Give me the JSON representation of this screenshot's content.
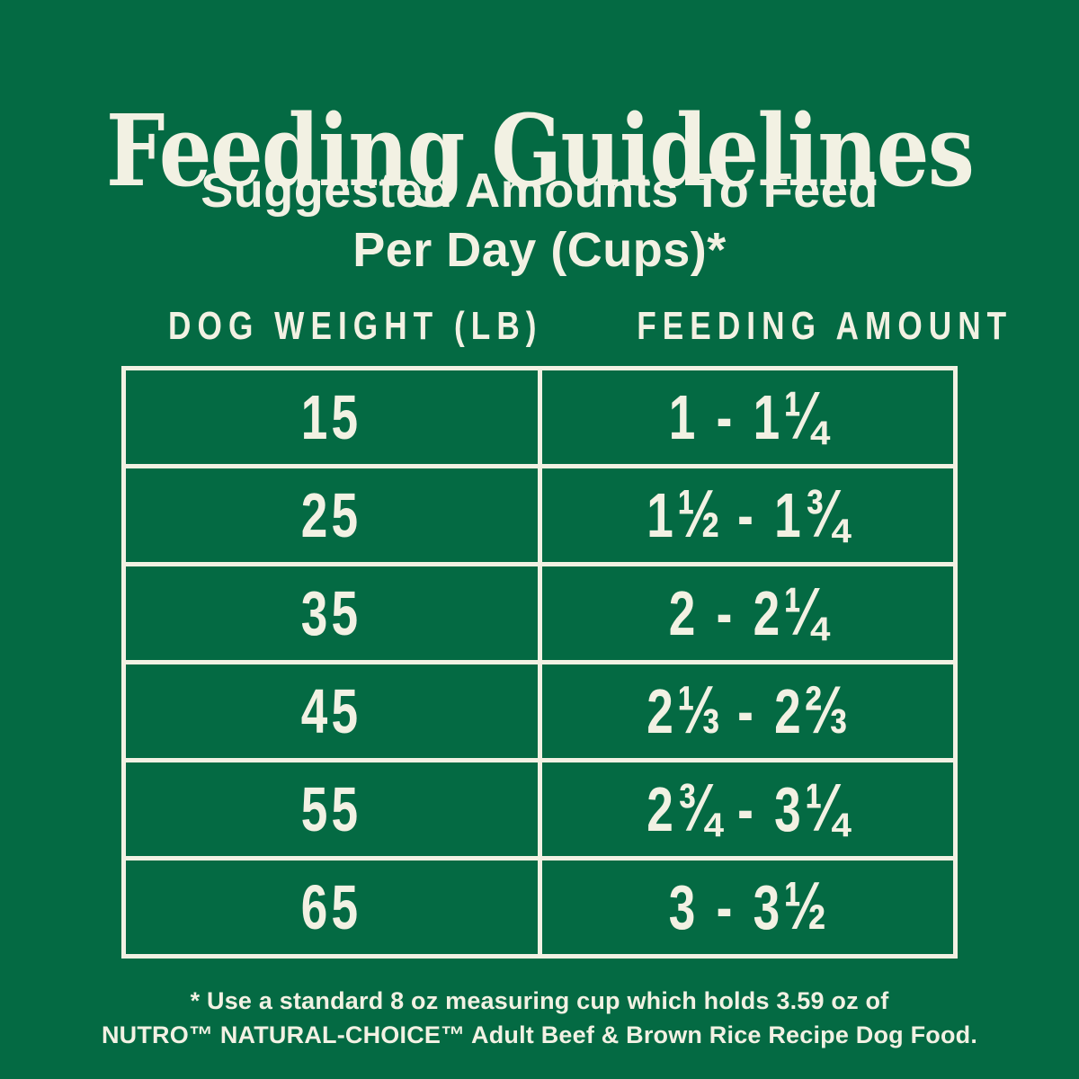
{
  "colors": {
    "background_green": "#046a43",
    "cream": "#f2f1e3"
  },
  "title": "Feeding Guidelines",
  "subtitle": {
    "line1": "Suggested Amounts To Feed",
    "line2": "Per Day (Cups)*"
  },
  "table": {
    "headers": {
      "weight": "DOG WEIGHT (LB)",
      "amount": "FEEDING AMOUNT"
    },
    "rows": [
      {
        "weight": "15",
        "amount": "1 - 1¼"
      },
      {
        "weight": "25",
        "amount": "1½ - 1¾"
      },
      {
        "weight": "35",
        "amount": "2 - 2¼"
      },
      {
        "weight": "45",
        "amount": "2⅓ - 2⅔"
      },
      {
        "weight": "55",
        "amount": "2¾ - 3¼"
      },
      {
        "weight": "65",
        "amount": "3 - 3½"
      }
    ]
  },
  "footnote": {
    "line1": "* Use a standard 8 oz measuring cup which holds 3.59 oz of",
    "line2": "NUTRO™ NATURAL-CHOICE™ Adult Beef & Brown Rice Recipe Dog Food."
  },
  "chart_data": {
    "type": "table",
    "title": "Feeding Guidelines",
    "subtitle": "Suggested Amounts To Feed Per Day (Cups)*",
    "columns": [
      "DOG WEIGHT (LB)",
      "FEEDING AMOUNT"
    ],
    "rows": [
      [
        "15",
        "1 - 1¼"
      ],
      [
        "25",
        "1½ - 1¾"
      ],
      [
        "35",
        "2 - 2¼"
      ],
      [
        "45",
        "2⅓ - 2⅔"
      ],
      [
        "55",
        "2¾ - 3¼"
      ],
      [
        "65",
        "3 - 3½"
      ]
    ],
    "weights_lb": [
      15,
      25,
      35,
      45,
      55,
      65
    ],
    "feeding_cups_min": [
      1,
      1.5,
      2,
      2.333,
      2.75,
      3
    ],
    "feeding_cups_max": [
      1.25,
      1.75,
      2.25,
      2.667,
      3.25,
      3.5
    ],
    "footnote": "* Use a standard 8 oz measuring cup which holds 3.59 oz of NUTRO™ NATURAL-CHOICE™ Adult Beef & Brown Rice Recipe Dog Food.",
    "layout": {
      "grid": "2-column table, cream borders on green",
      "legend": "none"
    }
  }
}
